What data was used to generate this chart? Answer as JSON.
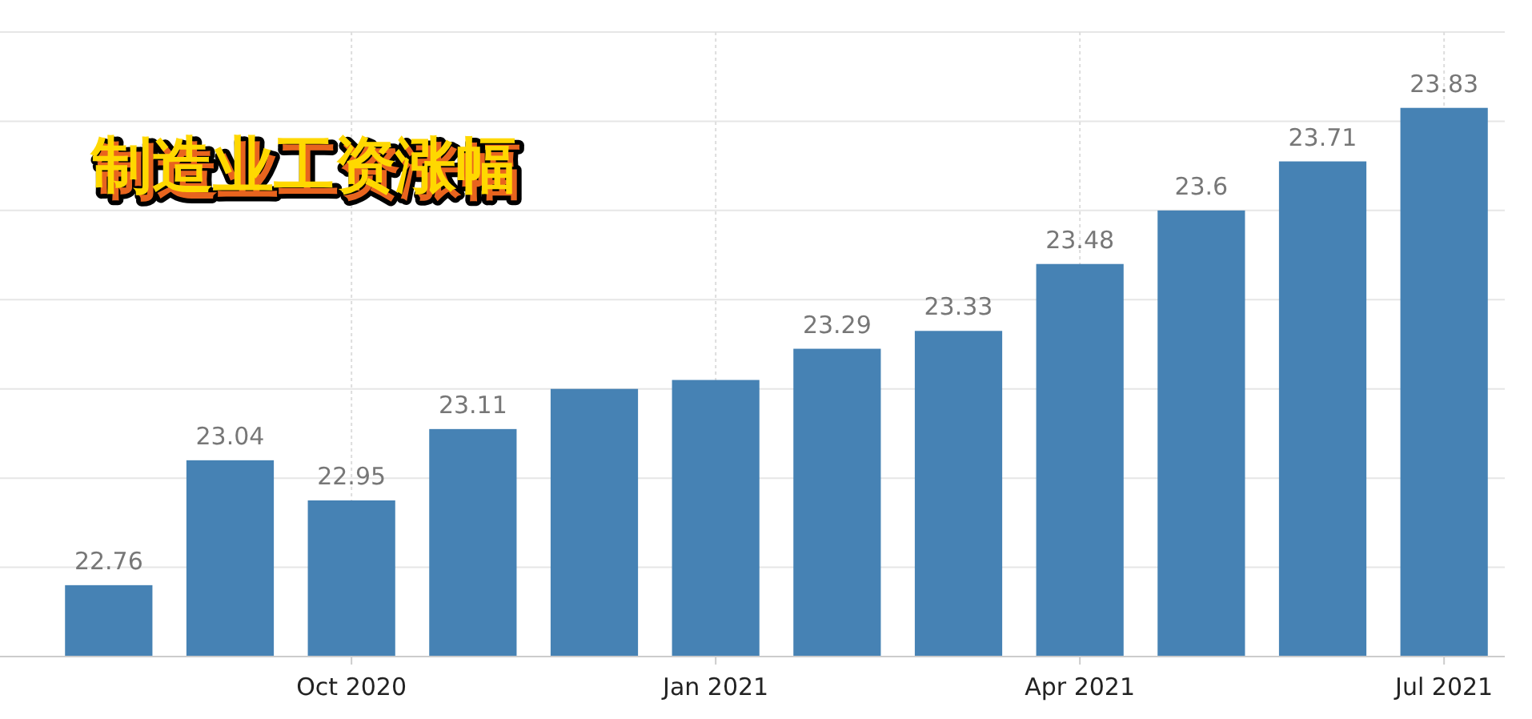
{
  "chart_data": {
    "type": "bar",
    "title": "制造业工资涨幅",
    "categories": [
      null,
      null,
      "Oct 2020",
      null,
      null,
      "Jan 2021",
      null,
      null,
      "Apr 2021",
      null,
      null,
      "Jul 2021"
    ],
    "values": [
      22.76,
      23.04,
      22.95,
      23.11,
      23.2,
      23.22,
      23.29,
      23.33,
      23.48,
      23.6,
      23.71,
      23.83
    ],
    "value_labels": [
      "22.76",
      "23.04",
      "22.95",
      "23.11",
      null,
      null,
      "23.29",
      "23.33",
      "23.48",
      "23.6",
      "23.71",
      "23.83"
    ],
    "color": "#4682b4",
    "ylim": [
      22.6,
      24.0
    ],
    "yticks": [
      {
        "value": 22.6,
        "label": null
      },
      {
        "value": 22.8,
        "label": null
      },
      {
        "value": 23.0,
        "label": null
      },
      {
        "value": 23.2,
        "label": null
      },
      {
        "value": 23.4,
        "label": null
      },
      {
        "value": 23.6,
        "label": null
      },
      {
        "value": 23.8,
        "label": null
      },
      {
        "value": 24.0,
        "label": null
      }
    ],
    "tick_labels": "x",
    "grid": true
  }
}
